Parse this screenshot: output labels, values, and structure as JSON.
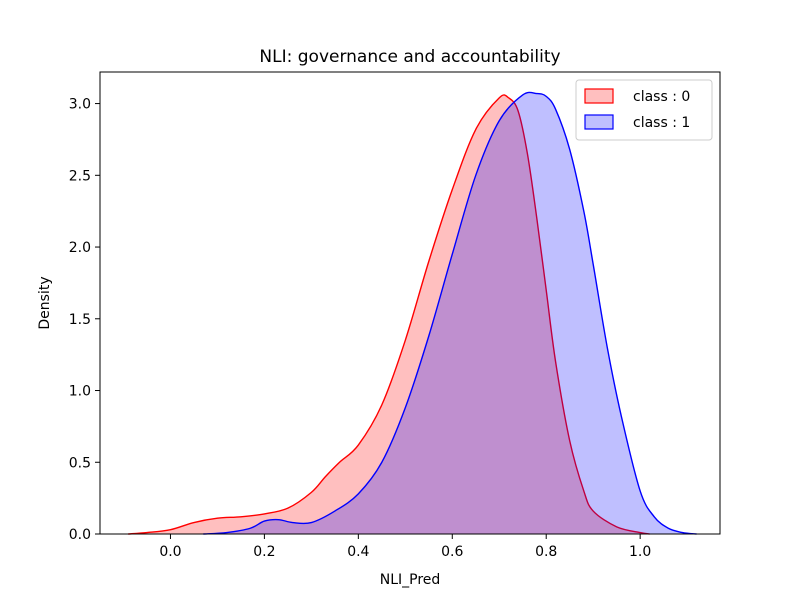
{
  "chart_data": {
    "type": "area",
    "title": "NLI: governance and accountability",
    "xlabel": "NLI_Pred",
    "ylabel": "Density",
    "xlim": [
      -0.15,
      1.17
    ],
    "ylim": [
      0,
      3.22
    ],
    "xticks": [
      0.0,
      0.2,
      0.4,
      0.6,
      0.8,
      1.0
    ],
    "xtick_labels": [
      "0.0",
      "0.2",
      "0.4",
      "0.6",
      "0.8",
      "1.0"
    ],
    "yticks": [
      0.0,
      0.5,
      1.0,
      1.5,
      2.0,
      2.5,
      3.0
    ],
    "ytick_labels": [
      "0.0",
      "0.5",
      "1.0",
      "1.5",
      "2.0",
      "2.5",
      "3.0"
    ],
    "grid": false,
    "legend_position": "top-right",
    "series": [
      {
        "name": "class : 0",
        "line_color": "#ff0000",
        "fill_color": "#ff0000",
        "fill_opacity": 0.25,
        "x": [
          -0.09,
          -0.05,
          0.0,
          0.05,
          0.1,
          0.15,
          0.2,
          0.25,
          0.3,
          0.33,
          0.36,
          0.4,
          0.45,
          0.5,
          0.55,
          0.6,
          0.65,
          0.7,
          0.72,
          0.74,
          0.76,
          0.78,
          0.8,
          0.82,
          0.85,
          0.88,
          0.9,
          0.95,
          1.0,
          1.02
        ],
        "y": [
          0.0,
          0.01,
          0.03,
          0.08,
          0.11,
          0.12,
          0.14,
          0.18,
          0.29,
          0.4,
          0.5,
          0.62,
          0.9,
          1.35,
          1.9,
          2.4,
          2.82,
          3.04,
          3.04,
          2.95,
          2.65,
          2.2,
          1.7,
          1.2,
          0.65,
          0.3,
          0.16,
          0.05,
          0.01,
          0.0
        ]
      },
      {
        "name": "class : 1",
        "line_color": "#0000ff",
        "fill_color": "#0000ff",
        "fill_opacity": 0.25,
        "x": [
          0.07,
          0.12,
          0.17,
          0.2,
          0.23,
          0.26,
          0.3,
          0.35,
          0.4,
          0.45,
          0.5,
          0.55,
          0.6,
          0.65,
          0.7,
          0.75,
          0.78,
          0.8,
          0.82,
          0.85,
          0.88,
          0.9,
          0.93,
          0.96,
          1.0,
          1.03,
          1.06,
          1.09,
          1.12
        ],
        "y": [
          0.0,
          0.01,
          0.04,
          0.09,
          0.1,
          0.08,
          0.08,
          0.16,
          0.28,
          0.5,
          0.88,
          1.38,
          1.95,
          2.5,
          2.88,
          3.06,
          3.07,
          3.05,
          2.96,
          2.68,
          2.25,
          1.88,
          1.3,
          0.82,
          0.3,
          0.12,
          0.04,
          0.01,
          0.0
        ]
      }
    ]
  }
}
